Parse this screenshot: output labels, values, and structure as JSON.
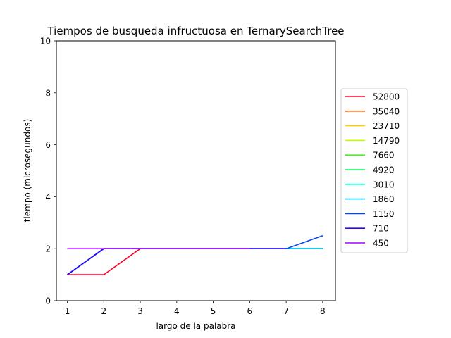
{
  "chart_data": {
    "type": "line",
    "title": "Tiempos de busqueda infructuosa en TernarySearchTree",
    "xlabel": "largo de la palabra",
    "ylabel": "tiempo (microsegundos)",
    "xlim": [
      0.7,
      8.35
    ],
    "ylim": [
      0,
      10
    ],
    "xticks": [
      1,
      2,
      3,
      4,
      5,
      6,
      7,
      8
    ],
    "yticks": [
      0,
      2,
      4,
      6,
      8,
      10
    ],
    "legend_position": "center-right outside",
    "series": [
      {
        "name": "52800",
        "color": "#ff0029",
        "x": [
          1,
          2,
          3,
          4,
          5,
          6,
          7,
          8
        ],
        "values": [
          1,
          1,
          2,
          2,
          2,
          2,
          2,
          2
        ]
      },
      {
        "name": "35040",
        "color": "#ff5500",
        "x": [
          1,
          2,
          3,
          4,
          5,
          6,
          7,
          8
        ],
        "values": [
          1,
          2,
          2,
          2,
          2,
          2,
          2,
          2
        ]
      },
      {
        "name": "23710",
        "color": "#ffcc00",
        "x": [
          1,
          2,
          3,
          4,
          5,
          6,
          7,
          8
        ],
        "values": [
          1,
          2,
          2,
          2,
          2,
          2,
          2,
          2
        ]
      },
      {
        "name": "14790",
        "color": "#bbff00",
        "x": [
          1,
          2,
          3,
          4,
          5,
          6,
          7,
          8
        ],
        "values": [
          1,
          2,
          2,
          2,
          2,
          2,
          2,
          2
        ]
      },
      {
        "name": "7660",
        "color": "#33ff00",
        "x": [
          1,
          2,
          3,
          4,
          5,
          6,
          7,
          8
        ],
        "values": [
          1,
          2,
          2,
          2,
          2,
          2,
          2,
          2
        ]
      },
      {
        "name": "4920",
        "color": "#00ff55",
        "x": [
          1,
          2,
          3,
          4,
          5,
          6,
          7,
          8
        ],
        "values": [
          1,
          2,
          2,
          2,
          2,
          2,
          2,
          2
        ]
      },
      {
        "name": "3010",
        "color": "#00ffcc",
        "x": [
          1,
          2,
          3,
          4,
          5,
          6,
          7,
          8
        ],
        "values": [
          1,
          2,
          2,
          2,
          2,
          2,
          2,
          2
        ]
      },
      {
        "name": "1860",
        "color": "#00bbff",
        "x": [
          1,
          2,
          3,
          4,
          5,
          6,
          7,
          8
        ],
        "values": [
          1,
          2,
          2,
          2,
          2,
          2,
          2,
          2
        ]
      },
      {
        "name": "1150",
        "color": "#0044ff",
        "x": [
          1,
          2,
          3,
          4,
          5,
          6,
          7,
          8
        ],
        "values": [
          1,
          2,
          2,
          2,
          2,
          2,
          2,
          2.5
        ]
      },
      {
        "name": "710",
        "color": "#3300ff",
        "x": [
          1,
          2,
          3,
          4,
          5,
          6,
          7
        ],
        "values": [
          1,
          2,
          2,
          2,
          2,
          2,
          2
        ]
      },
      {
        "name": "450",
        "color": "#aa00ff",
        "x": [
          1,
          2,
          3,
          4,
          5,
          6
        ],
        "values": [
          2,
          2,
          2,
          2,
          2,
          2
        ]
      }
    ]
  }
}
